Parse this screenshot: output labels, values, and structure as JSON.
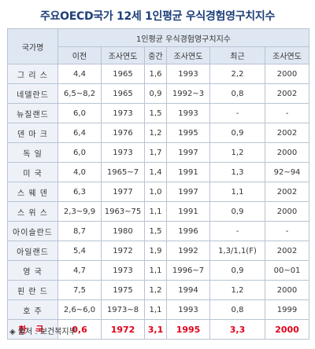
{
  "title": "주요OECD국가 12세 1인평균 우식경험영구치지수",
  "header": {
    "country_label": "국가명",
    "group_label": "1인평균 우식경험영구치지수",
    "columns": [
      "이전",
      "조사연도",
      "중간",
      "조사연도",
      "최근",
      "조사연도"
    ]
  },
  "rows": [
    {
      "country": "그 리 스",
      "values": [
        "4,4",
        "1965",
        "1,6",
        "1993",
        "2,2",
        "2000"
      ]
    },
    {
      "country": "네델란드",
      "values": [
        "6,5~8,2",
        "1965",
        "0,9",
        "1992~3",
        "0,8",
        "2002"
      ]
    },
    {
      "country": "뉴질랜드",
      "values": [
        "6,0",
        "1973",
        "1,5",
        "1993",
        "-",
        "-"
      ]
    },
    {
      "country": "덴 마 크",
      "values": [
        "6,4",
        "1976",
        "1,2",
        "1995",
        "0,9",
        "2002"
      ]
    },
    {
      "country": "독 일",
      "values": [
        "6,0",
        "1973",
        "1,7",
        "1997",
        "1,2",
        "2000"
      ]
    },
    {
      "country": "미 국",
      "values": [
        "4,0",
        "1965~7",
        "1,4",
        "1991",
        "1,3",
        "92~94"
      ]
    },
    {
      "country": "스 웨 덴",
      "values": [
        "6,3",
        "1977",
        "1,0",
        "1997",
        "1,1",
        "2002"
      ]
    },
    {
      "country": "스 위 스",
      "values": [
        "2,3~9,9",
        "1963~75",
        "1,1",
        "1991",
        "0,9",
        "2000"
      ]
    },
    {
      "country": "아이슬란드",
      "values": [
        "8,7",
        "1980",
        "1,5",
        "1996",
        "-",
        "-"
      ]
    },
    {
      "country": "아일랜드",
      "values": [
        "5,4",
        "1972",
        "1,9",
        "1992",
        "1,3/1,1(F)",
        "2002"
      ]
    },
    {
      "country": "영 국",
      "values": [
        "4,7",
        "1973",
        "1,1",
        "1996~7",
        "0,9",
        "00~01"
      ]
    },
    {
      "country": "핀 란 드",
      "values": [
        "7,5",
        "1975",
        "1,2",
        "1994",
        "1,2",
        "2000"
      ]
    },
    {
      "country": "호 주",
      "values": [
        "2,6~6,0",
        "1973~8",
        "1,1",
        "1993",
        "0,8",
        "1999"
      ]
    }
  ],
  "korea_row": {
    "country": "한 국",
    "values": [
      "0,6",
      "1972",
      "3,1",
      "1995",
      "3,3",
      "2000"
    ]
  },
  "source": {
    "mark": "◈",
    "text": "출처 : 보건복지부"
  }
}
